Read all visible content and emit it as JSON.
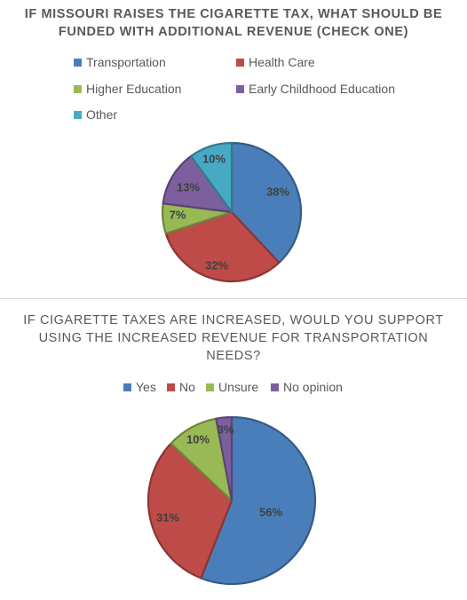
{
  "chart_data": [
    {
      "type": "pie",
      "title": "IF MISSOURI RAISES THE CIGARETTE TAX, WHAT SHOULD BE FUNDED WITH ADDITIONAL REVENUE (CHECK ONE)",
      "legend_position": "top",
      "categories": [
        "Transportation",
        "Health Care",
        "Higher Education",
        "Early Childhood Education",
        "Other"
      ],
      "values": [
        38,
        32,
        7,
        13,
        10
      ],
      "labels": [
        "38%",
        "32%",
        "7%",
        "13%",
        "10%"
      ],
      "colors": [
        "#4a7ebb",
        "#be4b48",
        "#98b954",
        "#7d5fa0",
        "#46aac5"
      ]
    },
    {
      "type": "pie",
      "title": "IF CIGARETTE TAXES ARE INCREASED, WOULD YOU SUPPORT USING THE INCREASED REVENUE FOR TRANSPORTATION NEEDS?",
      "legend_position": "top",
      "categories": [
        "Yes",
        "No",
        "Unsure",
        "No opinion"
      ],
      "values": [
        56,
        31,
        10,
        3
      ],
      "labels": [
        "56%",
        "31%",
        "10%",
        "3%"
      ],
      "colors": [
        "#4a7ebb",
        "#be4b48",
        "#98b954",
        "#7d5fa0"
      ]
    }
  ]
}
